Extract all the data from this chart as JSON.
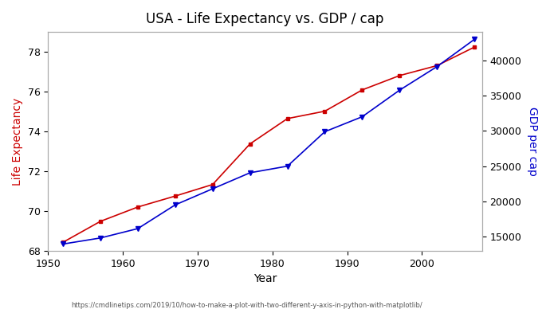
{
  "title": "USA - Life Expectancy vs. GDP / cap",
  "xlabel": "Year",
  "ylabel_left": "Life Expectancy",
  "ylabel_right": "GDP per cap",
  "url_text": "https://cmdlinetips.com/2019/10/how-to-make-a-plot-with-two-different-y-axis-in-python-with-matplotlib/",
  "years": [
    1952,
    1957,
    1962,
    1967,
    1972,
    1977,
    1982,
    1987,
    1992,
    1997,
    2002,
    2007
  ],
  "life_exp": [
    68.44,
    69.49,
    70.21,
    70.76,
    71.34,
    73.38,
    74.65,
    75.02,
    76.09,
    76.81,
    77.31,
    78.24
  ],
  "gdp_per_cap": [
    13990,
    14847,
    16173,
    19530,
    21806,
    24073,
    25010,
    29884,
    32004,
    35767,
    39097,
    42952
  ],
  "color_life": "#cc0000",
  "color_gdp": "#0000cc",
  "ylim_life": [
    68,
    79
  ],
  "ylim_gdp": [
    13000,
    44000
  ],
  "xlim": [
    1950,
    2008
  ],
  "bg_color": "#ffffff",
  "plot_bg": "#ffffff",
  "title_fontsize": 12,
  "label_fontsize": 10,
  "tick_fontsize": 9,
  "url_fontsize": 6,
  "yticks_life": [
    68,
    70,
    72,
    74,
    76,
    78
  ],
  "yticks_gdp": [
    15000,
    20000,
    25000,
    30000,
    35000,
    40000
  ],
  "xticks": [
    1950,
    1960,
    1970,
    1980,
    1990,
    2000
  ]
}
